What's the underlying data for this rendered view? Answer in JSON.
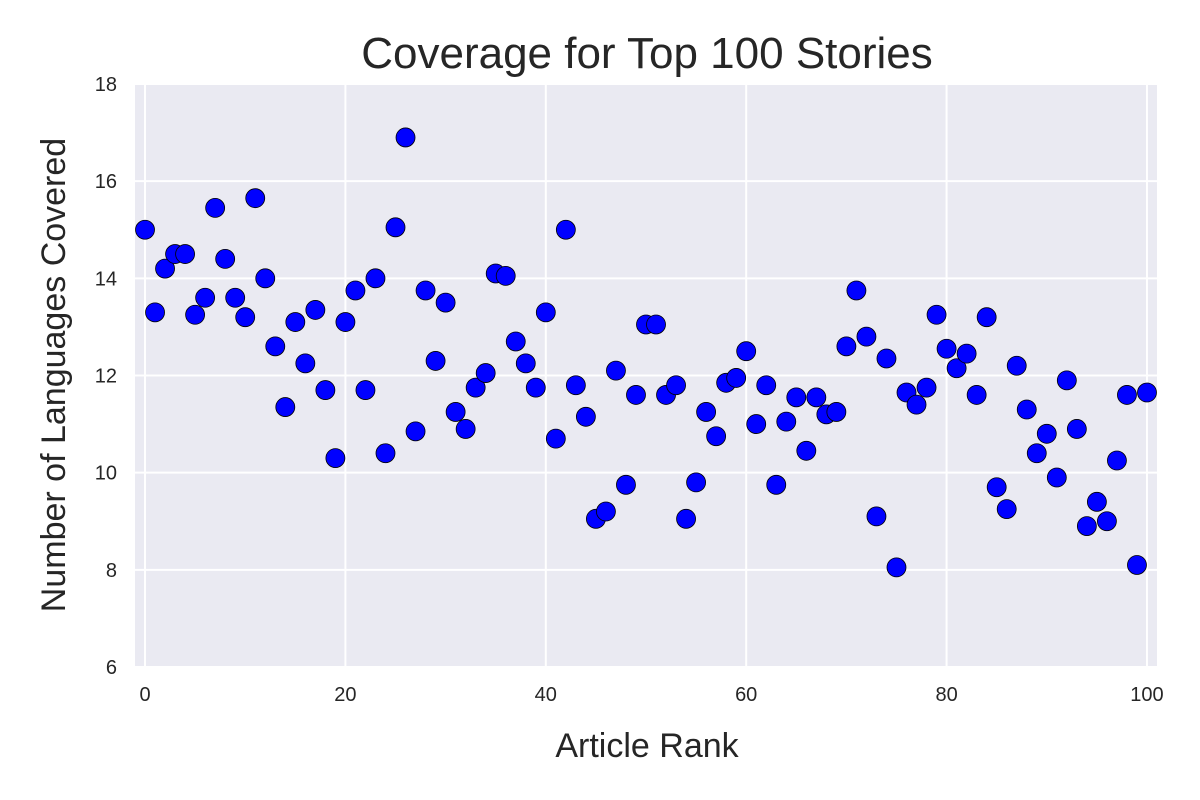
{
  "chart_data": {
    "type": "scatter",
    "title": "Coverage for Top 100 Stories",
    "xlabel": "Article Rank",
    "ylabel": "Number of Languages Covered",
    "xlim": [
      -1,
      101
    ],
    "ylim": [
      6,
      18
    ],
    "xticks": [
      "0",
      "20",
      "40",
      "60",
      "80",
      "100"
    ],
    "yticks": [
      "6",
      "8",
      "10",
      "12",
      "14",
      "16",
      "18"
    ],
    "grid": true,
    "background": "#eaeaf2",
    "marker_color": "#0000ff",
    "series": [
      {
        "x": [
          0,
          1,
          2,
          3,
          4,
          5,
          6,
          7,
          8,
          9,
          10,
          11,
          12,
          13,
          14,
          15,
          16,
          17,
          18,
          19,
          20,
          21,
          22,
          23,
          24,
          25,
          26,
          27,
          28,
          29,
          30,
          31,
          32,
          33,
          34,
          35,
          36,
          37,
          38,
          39,
          40,
          41,
          42,
          43,
          44,
          45,
          46,
          47,
          48,
          49,
          50,
          51,
          52,
          53,
          54,
          55,
          56,
          57,
          58,
          59,
          60,
          61,
          62,
          63,
          64,
          65,
          66,
          67,
          68,
          69,
          70,
          71,
          72,
          73,
          74,
          75,
          76,
          77,
          78,
          79,
          80,
          81,
          82,
          83,
          84,
          85,
          86,
          87,
          88,
          89,
          90,
          91,
          92,
          93,
          94,
          95,
          96,
          97,
          98,
          99,
          100
        ],
        "y": [
          15.0,
          13.3,
          14.2,
          14.5,
          14.5,
          13.25,
          13.6,
          15.45,
          14.4,
          13.6,
          13.2,
          15.65,
          14.0,
          12.6,
          11.35,
          13.1,
          12.25,
          13.35,
          11.7,
          10.3,
          13.1,
          13.75,
          11.7,
          14.0,
          10.4,
          15.05,
          16.9,
          10.85,
          13.75,
          12.3,
          13.5,
          11.25,
          10.9,
          11.75,
          12.05,
          14.1,
          14.05,
          12.7,
          12.25,
          11.75,
          13.3,
          10.7,
          15.0,
          11.8,
          11.15,
          9.05,
          9.2,
          12.1,
          9.75,
          11.6,
          13.05,
          13.05,
          11.6,
          11.8,
          9.05,
          9.8,
          11.25,
          10.75,
          11.85,
          11.95,
          12.5,
          11.0,
          11.8,
          9.75,
          11.05,
          11.55,
          10.45,
          11.55,
          11.2,
          11.25,
          12.6,
          13.75,
          12.8,
          9.1,
          12.35,
          8.05,
          11.65,
          11.4,
          11.75,
          13.25,
          12.55,
          12.15,
          12.45,
          11.6,
          13.2,
          9.7,
          9.25,
          12.2,
          11.3,
          10.4,
          10.8,
          9.9,
          11.9,
          10.9,
          8.9,
          9.4,
          9.0,
          10.25,
          11.6,
          8.1,
          11.65
        ]
      }
    ]
  }
}
